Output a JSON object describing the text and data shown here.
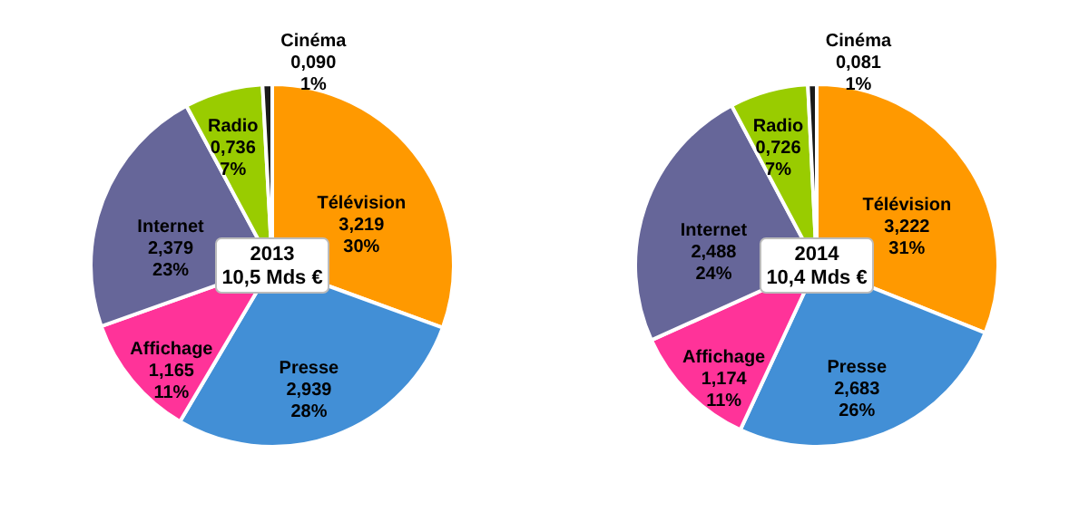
{
  "chart_data": [
    {
      "type": "pie",
      "categories": [
        "Télévision",
        "Presse",
        "Affichage",
        "Internet",
        "Radio",
        "Cinéma"
      ],
      "values": [
        3.219,
        2.939,
        1.165,
        2.379,
        0.736,
        0.09
      ],
      "value_labels": [
        "3,219\n30%",
        "2,939\n28%",
        "1,165\n11%",
        "2,379\n23%",
        "0,736\n7%",
        "0,090\n1%"
      ],
      "colors": [
        "#ff9900",
        "#428fd6",
        "#ff3399",
        "#666699",
        "#99cc00",
        "#1a1a1a"
      ],
      "annotations": [
        "2013\n10,5 Mds €"
      ]
    },
    {
      "type": "pie",
      "categories": [
        "Télévision",
        "Presse",
        "Affichage",
        "Internet",
        "Radio",
        "Cinéma"
      ],
      "values": [
        3.222,
        2.683,
        1.174,
        2.488,
        0.726,
        0.081
      ],
      "value_labels": [
        "3,222\n31%",
        "2,683\n26%",
        "1,174\n11%",
        "2,488\n24%",
        "0,726\n7%",
        "0,081\n1%"
      ],
      "colors": [
        "#ff9900",
        "#428fd6",
        "#ff3399",
        "#666699",
        "#99cc00",
        "#1a1a1a"
      ],
      "annotations": [
        "2014\n10,4 Mds €"
      ]
    }
  ]
}
